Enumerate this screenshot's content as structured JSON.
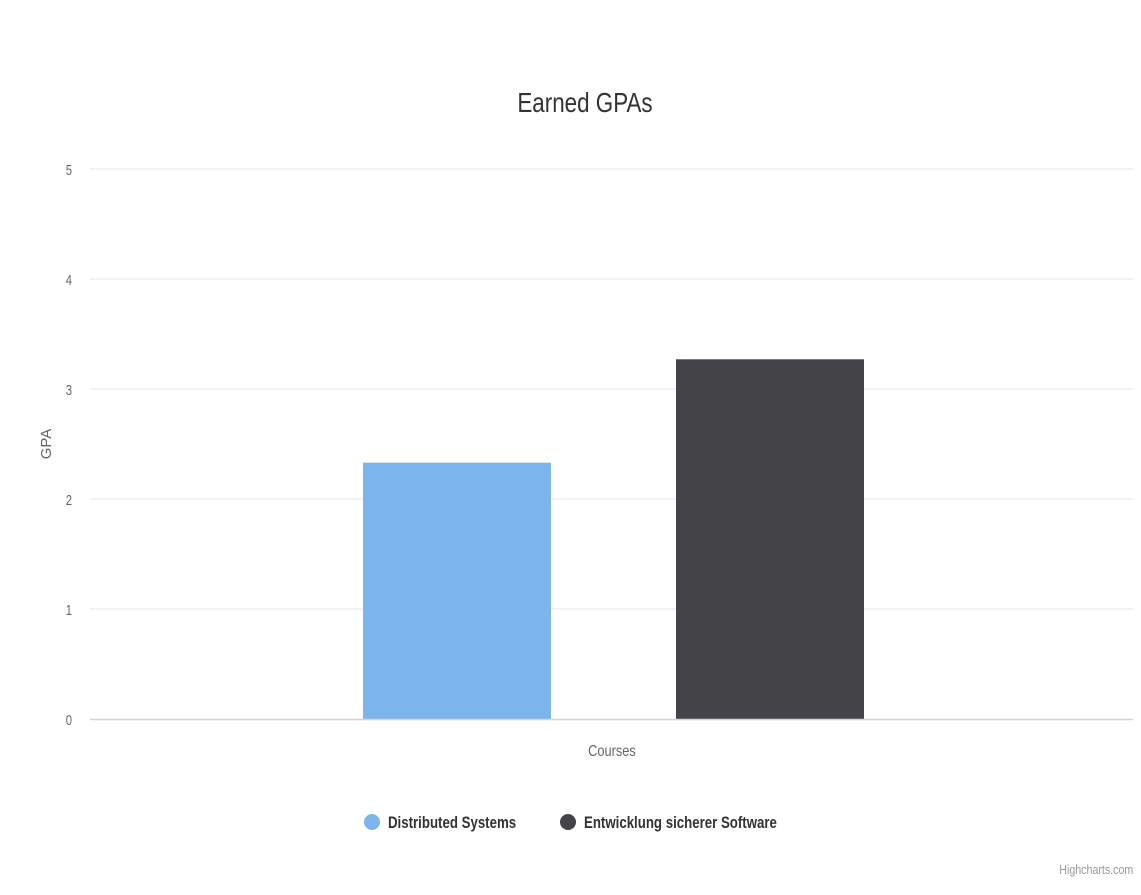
{
  "chart_data": {
    "type": "bar",
    "title": "Earned GPAs",
    "xlabel": "Courses",
    "ylabel": "GPA",
    "ylim": [
      0,
      5
    ],
    "yticks": [
      "0",
      "1",
      "2",
      "3",
      "4",
      "5"
    ],
    "grid": true,
    "legend_position": "bottom",
    "categories": [],
    "series": [
      {
        "name": "Distributed Systems",
        "value": 2.33,
        "color": "#7cb5ec"
      },
      {
        "name": "Entwicklung sicherer Software",
        "value": 3.27,
        "color": "#434348"
      }
    ]
  },
  "credits": "Highcharts.com"
}
